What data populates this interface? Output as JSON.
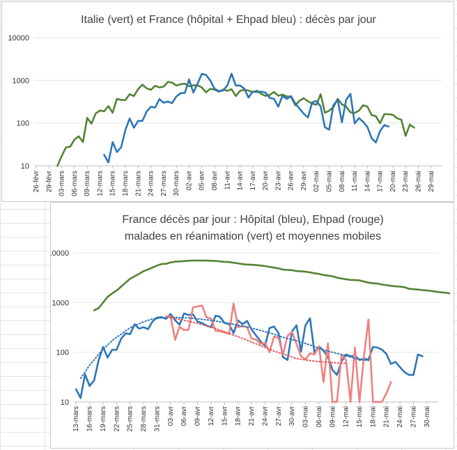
{
  "chart_data": [
    {
      "type": "line",
      "title": "Italie (vert) et France (hôpital + Ehpad bleu) : décès par jour",
      "yscale": "log",
      "ylim": [
        10,
        10000
      ],
      "yticks": [
        "10",
        "100",
        "1000",
        "10000"
      ],
      "ytick_values": [
        10,
        100,
        1000,
        10000
      ],
      "xticks": [
        "26-févr",
        "29-févr",
        "03-mars",
        "06-mars",
        "09-mars",
        "12-mars",
        "15-mars",
        "18-mars",
        "21-mars",
        "24-mars",
        "27-mars",
        "30-mars",
        "02-avr",
        "05-avr",
        "08-avr",
        "11-avr",
        "14-avr",
        "17-avr",
        "20-avr",
        "23-avr",
        "26-avr",
        "29-avr",
        "02-mai",
        "05-mai",
        "08-mai",
        "11-mai",
        "14-mai",
        "17-mai",
        "20-mai",
        "23-mai",
        "26-mai",
        "29-mai"
      ],
      "series": [
        {
          "color": "#548235",
          "start_day": 5,
          "values": [
            10,
            17,
            27,
            28,
            41,
            49,
            36,
            133,
            97,
            168,
            196,
            189,
            250,
            175,
            368,
            349,
            345,
            475,
            427,
            627,
            793,
            651,
            601,
            743,
            683,
            712,
            919,
            889,
            756,
            812,
            837,
            727,
            760,
            766,
            681,
            525,
            636,
            604,
            542,
            610,
            570,
            619,
            431,
            566,
            602,
            578,
            525,
            575,
            482,
            433,
            454,
            534,
            437,
            464,
            420,
            415,
            260,
            333,
            382,
            323,
            285,
            269,
            474,
            174,
            195,
            236,
            369,
            274,
            243,
            179,
            172,
            195,
            262,
            242,
            153,
            145,
            99,
            162,
            161,
            156,
            130,
            119,
            50,
            92,
            78
          ]
        },
        {
          "color": "#2e75b6",
          "start_day": 16,
          "values": [
            18,
            12,
            36,
            21,
            27,
            69,
            128,
            78,
            112,
            112,
            186,
            240,
            231,
            365,
            299,
            319,
            292,
            418,
            499,
            509,
            1053,
            518,
            833,
            1417,
            1341,
            987,
            635,
            561,
            574,
            762,
            1438,
            753,
            761,
            642,
            395,
            547,
            531,
            544,
            516,
            389,
            369,
            242,
            437,
            367,
            427,
            289,
            218,
            166,
            135,
            306,
            330,
            243,
            80,
            70,
            263,
            348,
            104,
            351,
            483,
            98,
            131,
            107,
            81,
            44,
            35,
            65,
            90,
            83
          ]
        }
      ]
    },
    {
      "type": "line",
      "title": "France décès par jour : Hôpital (bleu), Ehpad (rouge)",
      "subtitle": "malades en réanimation (vert) et moyennes mobiles",
      "yscale": "log",
      "ylim": [
        10,
        10000
      ],
      "yticks": [
        "10",
        "100",
        "1000",
        "10000"
      ],
      "ytick_values": [
        10,
        100,
        1000,
        10000
      ],
      "xticks": [
        "13-mars",
        "16-mars",
        "19-mars",
        "22-mars",
        "25-mars",
        "28-mars",
        "31-mars",
        "03-avr",
        "06-avr",
        "09-avr",
        "12-avr",
        "15-avr",
        "18-avr",
        "21-avr",
        "24-avr",
        "27-avr",
        "30-avr",
        "03-mai",
        "06-mai",
        "09-mai",
        "12-mai",
        "15-mai",
        "18-mai",
        "21-mai",
        "24-mai",
        "27-mai",
        "30-mai"
      ],
      "series": [
        {
          "color": "#548235",
          "start_day": 4,
          "values": [
            699,
            771,
            1002,
            1297,
            1525,
            1746,
            2080,
            2516,
            3001,
            3375,
            3787,
            4273,
            4632,
            5072,
            5565,
            5940,
            6017,
            6399,
            6662,
            6723,
            6838,
            6948,
            7004,
            7019,
            6991,
            7008,
            6927,
            6874,
            6730,
            6589,
            6539,
            6321,
            6134,
            5920,
            5820,
            5789,
            5668,
            5566,
            5423,
            5220,
            5053,
            4861,
            4608,
            4541,
            4470,
            4303,
            4233,
            4173,
            4044,
            3882,
            3769,
            3578,
            3487,
            3384,
            3173,
            3050,
            2943,
            2861,
            2831,
            2793,
            2641,
            2521,
            2439,
            2417,
            2305,
            2239,
            2171,
            2114,
            2099,
            2034,
            1896,
            1853,
            1827,
            1781,
            1757,
            1703,
            1659,
            1608,
            1581,
            1530
          ]
        },
        {
          "color": "#2e75b6",
          "start_day": 0,
          "values": [
            18,
            12,
            36,
            21,
            27,
            69,
            128,
            78,
            112,
            112,
            186,
            240,
            231,
            365,
            299,
            319,
            292,
            418,
            499,
            509,
            471,
            588,
            441,
            357,
            605,
            561,
            574,
            412,
            387,
            343,
            320,
            544,
            516,
            389,
            369,
            242,
            437,
            367,
            427,
            289,
            218,
            166,
            135,
            306,
            330,
            243,
            80,
            70,
            263,
            348,
            104,
            351,
            483,
            98,
            131,
            107,
            81,
            44,
            35,
            65,
            90,
            83,
            85,
            70,
            74,
            71,
            128,
            124,
            113,
            92,
            58,
            64,
            50,
            40,
            35,
            35,
            90,
            83
          ]
        },
        {
          "color": "#f08080",
          "start_day": 20,
          "values": [
            520,
            532,
            178,
            326,
            279,
            283,
            804,
            832,
            874,
            498,
            480,
            270,
            264,
            250,
            233,
            958,
            320,
            332,
            325,
            189,
            180,
            148,
            154,
            100,
            206,
            194,
            89,
            215,
            254,
            148,
            83,
            72,
            95,
            90,
            132,
            25,
            150,
            10,
            8,
            88,
            70,
            10,
            124,
            8,
            85,
            456,
            8,
            8,
            10,
            15,
            25
          ]
        },
        {
          "color": "#2e75b6",
          "style": "dotted",
          "trend": true,
          "start_day": 1,
          "values": [
            30,
            40,
            55,
            70,
            90,
            115,
            140,
            170,
            200,
            230,
            270,
            310,
            345,
            375,
            410,
            440,
            470,
            480,
            490,
            500,
            505,
            505,
            500,
            495,
            490,
            480,
            470,
            460,
            450,
            440,
            425,
            410,
            395,
            380,
            365,
            350,
            335,
            320,
            305,
            290,
            275,
            260,
            245,
            230,
            215,
            200,
            190,
            180,
            170,
            160,
            150,
            140,
            130,
            120,
            112,
            105,
            100,
            95,
            90,
            85,
            80,
            75,
            72,
            70,
            68
          ]
        },
        {
          "color": "#e06060",
          "style": "dotted",
          "trend": true,
          "start_day": 20,
          "values": [
            520,
            500,
            480,
            460,
            440,
            420,
            400,
            380,
            360,
            340,
            320,
            300,
            280,
            260,
            240,
            220,
            205,
            190,
            175,
            160,
            148,
            136,
            125,
            115,
            106,
            98,
            92,
            86,
            80,
            75,
            72,
            70,
            68,
            66,
            65,
            64,
            63,
            62,
            61,
            60,
            60
          ]
        }
      ]
    }
  ]
}
